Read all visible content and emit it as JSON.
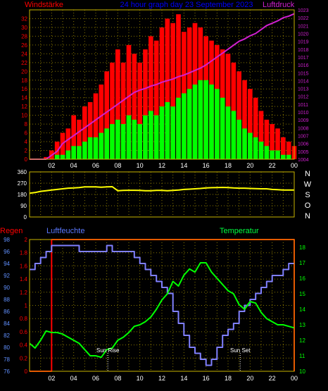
{
  "colors": {
    "background": "#000000",
    "grid": "#8a7a00",
    "axis_frame": "#c8b400",
    "red": "#ff0000",
    "green": "#00ff00",
    "magenta": "#d020d0",
    "yellow": "#ffff00",
    "blue": "#8080ff",
    "sky": "#6090ff",
    "white": "#ffffff",
    "title_blue": "#0000ff",
    "humidity_label": "#5a78ff",
    "temperature_label": "#00ff40"
  },
  "header": {
    "left_label": "Windstärke",
    "title": "24 hour graph day  23 September 2023",
    "right_label": "Luftdruck"
  },
  "x_tick_labels": [
    "02",
    "04",
    "06",
    "08",
    "10",
    "12",
    "14",
    "16",
    "18",
    "20",
    "22",
    "00"
  ],
  "chart_data": [
    {
      "type": "bar",
      "panel": "wind_pressure",
      "title": "24 hour graph day  23 September 2023",
      "left_axis_label": "Windstärke",
      "right_axis_label": "Luftdruck",
      "y_left_ticks": [
        0,
        2,
        4,
        6,
        8,
        10,
        12,
        14,
        16,
        18,
        20,
        22,
        24,
        26,
        28,
        30,
        32
      ],
      "ylim_left": [
        0,
        34
      ],
      "y_right_ticks": [
        1004,
        1005,
        1006,
        1007,
        1008,
        1009,
        1010,
        1011,
        1012,
        1013,
        1014,
        1015,
        1016,
        1017,
        1018,
        1019,
        1020,
        1021,
        1022,
        1023
      ],
      "ylim_right": [
        1004,
        1023
      ],
      "x_hours": [
        0,
        0.5,
        1,
        1.5,
        2,
        2.5,
        3,
        3.5,
        4,
        4.5,
        5,
        5.5,
        6,
        6.5,
        7,
        7.5,
        8,
        8.5,
        9,
        9.5,
        10,
        10.5,
        11,
        11.5,
        12,
        12.5,
        13,
        13.5,
        14,
        14.5,
        15,
        15.5,
        16,
        16.5,
        17,
        17.5,
        18,
        18.5,
        19,
        19.5,
        20,
        20.5,
        21,
        21.5,
        22,
        22.5,
        23,
        23.5,
        24
      ],
      "series": [
        {
          "role": "gust",
          "color": "red",
          "values": [
            0,
            0,
            0,
            0.5,
            2,
            4,
            6,
            7,
            10,
            9,
            12,
            13,
            15,
            17,
            20,
            22,
            25,
            22,
            26,
            24,
            22,
            25,
            28,
            27,
            30,
            32,
            31,
            33,
            29,
            30,
            31,
            30,
            28,
            27,
            26,
            25,
            24,
            22,
            20,
            18,
            16,
            14,
            11,
            9,
            8,
            7,
            5,
            4,
            3
          ]
        },
        {
          "role": "average",
          "color": "green",
          "values": [
            0,
            0,
            0,
            0,
            0,
            1,
            1,
            2,
            3,
            3,
            4,
            5,
            5,
            6,
            7,
            8,
            9,
            8,
            10,
            9,
            8,
            10,
            11,
            10,
            12,
            13,
            12,
            14,
            15,
            16,
            17,
            18,
            18,
            17,
            16,
            14,
            12,
            11,
            9,
            7,
            6,
            5,
            4,
            3,
            2,
            2,
            1,
            1,
            0
          ]
        },
        {
          "role": "pressure",
          "color": "magenta",
          "axis": "right",
          "values": [
            1004,
            1004,
            1004,
            1004,
            1004.5,
            1005,
            1006,
            1006.5,
            1007,
            1007.5,
            1008,
            1008.5,
            1009,
            1009.5,
            1010,
            1010.5,
            1011,
            1011.5,
            1012,
            1012.5,
            1012.8,
            1013,
            1013.3,
            1013.5,
            1013.8,
            1014,
            1014.2,
            1014.5,
            1014.7,
            1015,
            1015.3,
            1015.6,
            1016,
            1016.5,
            1017,
            1017.5,
            1018,
            1018.5,
            1019,
            1019.3,
            1019.7,
            1020,
            1020.5,
            1021,
            1021.3,
            1021.6,
            1022,
            1022.2,
            1022.5
          ]
        }
      ]
    },
    {
      "type": "line",
      "panel": "wind_direction",
      "y_ticks": [
        0,
        90,
        180,
        270,
        360
      ],
      "ylim": [
        0,
        360
      ],
      "compass_letters": [
        "N",
        "W",
        "S",
        "O",
        "N"
      ],
      "x_hours": [
        0,
        0.5,
        1,
        1.5,
        2,
        2.5,
        3,
        3.5,
        4,
        4.5,
        5,
        5.5,
        6,
        6.5,
        7,
        7.5,
        8,
        8.5,
        9,
        9.5,
        10,
        10.5,
        11,
        11.5,
        12,
        12.5,
        13,
        13.5,
        14,
        14.5,
        15,
        15.5,
        16,
        16.5,
        17,
        17.5,
        18,
        18.5,
        19,
        19.5,
        20,
        20.5,
        21,
        21.5,
        22,
        22.5,
        23,
        23.5,
        24
      ],
      "series": [
        {
          "role": "direction",
          "color": "yellow",
          "values": [
            190,
            195,
            205,
            210,
            215,
            220,
            225,
            230,
            232,
            235,
            240,
            240,
            240,
            238,
            240,
            242,
            210,
            212,
            213,
            213,
            212,
            210,
            210,
            212,
            212,
            210,
            212,
            215,
            220,
            222,
            225,
            228,
            232,
            234,
            235,
            236,
            235,
            232,
            230,
            230,
            228,
            226,
            225,
            225,
            220,
            218,
            215,
            215,
            215
          ]
        }
      ]
    },
    {
      "type": "line",
      "panel": "rain_humidity_temperature",
      "left_axis_label": "Regen",
      "middle_axis_label": "Luftfeuchte",
      "right_axis_label": "Temperatur",
      "rain_ticks": [
        0,
        0.2,
        0.4,
        0.6,
        0.8,
        1,
        1.2,
        1.4,
        1.6,
        1.8,
        2
      ],
      "rain_ylim": [
        0,
        2
      ],
      "humidity_ticks": [
        76,
        78,
        80,
        82,
        84,
        86,
        88,
        90,
        92,
        94,
        96,
        98
      ],
      "humidity_ylim": [
        76,
        98
      ],
      "temperature_ticks": [
        10,
        11,
        12,
        13,
        14,
        15,
        16,
        17,
        18
      ],
      "temperature_ylim": [
        10,
        18.5
      ],
      "annotations": [
        {
          "text": "Sun Rise",
          "x_hour": 7.1
        },
        {
          "text": "Sun Set",
          "x_hour": 19.1
        }
      ],
      "x_hours": [
        0,
        0.5,
        1,
        1.5,
        2,
        2.5,
        3,
        3.5,
        4,
        4.5,
        5,
        5.5,
        6,
        6.5,
        7,
        7.5,
        8,
        8.5,
        9,
        9.5,
        10,
        10.5,
        11,
        11.5,
        12,
        12.5,
        13,
        13.5,
        14,
        14.5,
        15,
        15.5,
        16,
        16.5,
        17,
        17.5,
        18,
        18.5,
        19,
        19.5,
        20,
        20.5,
        21,
        21.5,
        22,
        22.5,
        23,
        23.5,
        24
      ],
      "series": [
        {
          "role": "rain",
          "color": "red",
          "axis": "rain",
          "values": [
            0,
            0,
            0,
            0,
            2,
            2,
            2,
            2,
            2,
            2,
            2,
            2,
            2,
            2,
            2,
            2,
            2,
            2,
            2,
            2,
            2,
            2,
            2,
            2,
            2,
            2,
            2,
            2,
            2,
            2,
            2,
            2,
            2,
            2,
            2,
            2,
            2,
            2,
            2,
            2,
            2,
            2,
            2,
            2,
            2,
            2,
            2,
            2,
            0
          ]
        },
        {
          "role": "humidity",
          "color": "blue",
          "axis": "humidity",
          "values": [
            93,
            94,
            95,
            96,
            97,
            97,
            97,
            97,
            97,
            96,
            96,
            96,
            96,
            96,
            97,
            96,
            96,
            96,
            96,
            95,
            94,
            93,
            92,
            91,
            90,
            89,
            86,
            84,
            82,
            80,
            79,
            78,
            77,
            78,
            80,
            82,
            83,
            84,
            86,
            87,
            88,
            89,
            90,
            91,
            92,
            92,
            93,
            94,
            94
          ]
        },
        {
          "role": "temperature",
          "color": "green",
          "axis": "temperature",
          "values": [
            11.8,
            11.5,
            12.0,
            12.6,
            12.5,
            12.5,
            12.4,
            12.2,
            12.0,
            11.8,
            11.4,
            11.0,
            11.0,
            10.9,
            11.4,
            11.5,
            12.0,
            12.2,
            12.5,
            12.9,
            13.0,
            13.2,
            13.5,
            14.0,
            14.6,
            15.0,
            15.8,
            15.5,
            16.2,
            16.6,
            16.4,
            17.0,
            17.0,
            16.4,
            16.0,
            15.6,
            15.2,
            15.0,
            14.3,
            14.0,
            14.5,
            14.4,
            13.8,
            13.4,
            13.2,
            13.0,
            13.0,
            12.9,
            12.8
          ]
        }
      ]
    }
  ]
}
